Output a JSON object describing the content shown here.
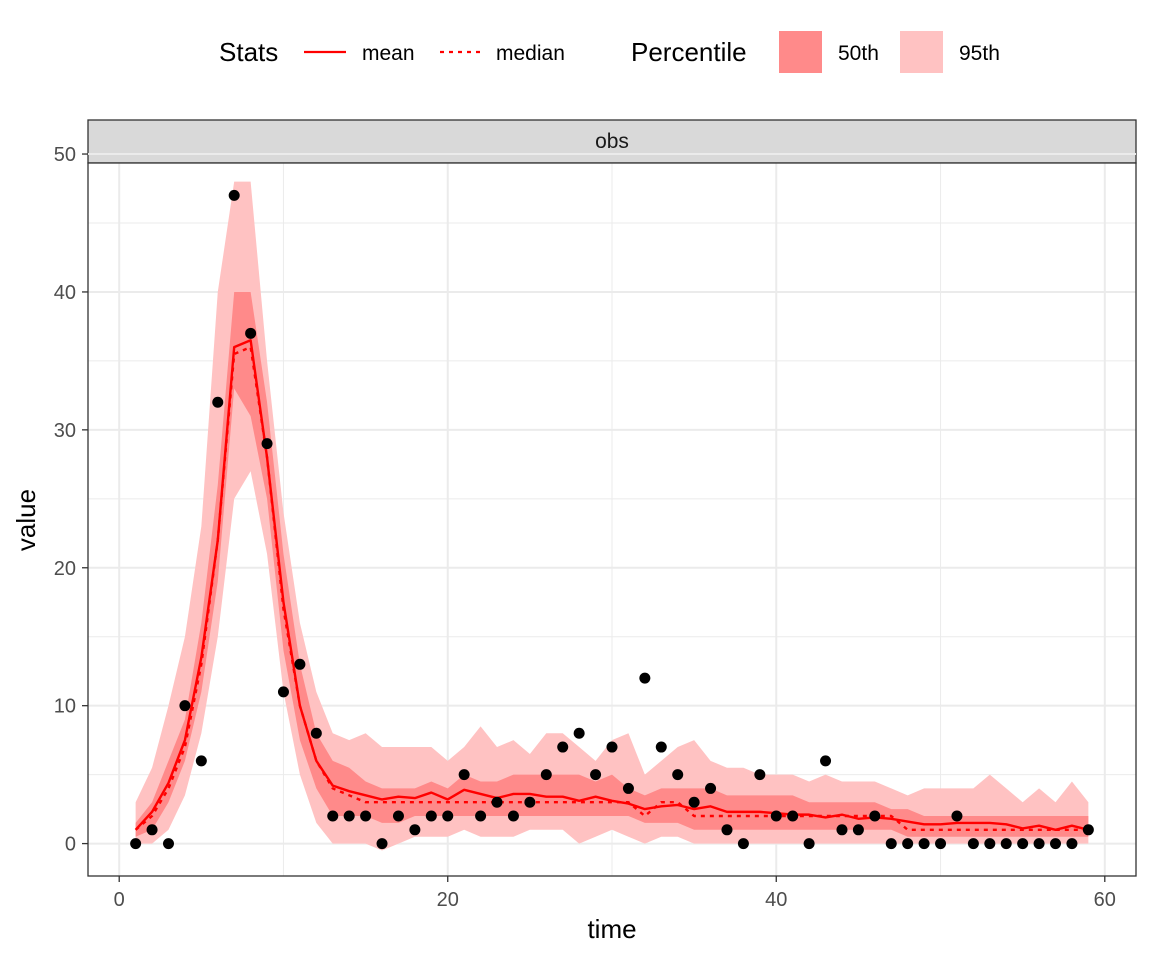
{
  "chart_data": {
    "type": "line",
    "facet_label": "obs",
    "xlabel": "time",
    "ylabel": "value",
    "xlim": [
      -1.9,
      61.9
    ],
    "ylim": [
      -2.35,
      49.35
    ],
    "x_ticks": [
      0,
      20,
      40,
      60
    ],
    "x_tick_labels": [
      "0",
      "20",
      "40",
      "60"
    ],
    "y_ticks": [
      0,
      10,
      20,
      30,
      40,
      50
    ],
    "y_tick_labels": [
      "0",
      "10",
      "20",
      "30",
      "40",
      "50"
    ],
    "grid": true,
    "legend_position": "top",
    "legend": {
      "stats_title": "Stats",
      "mean_label": "mean",
      "median_label": "median",
      "percentile_title": "Percentile",
      "p50_label": "50th",
      "p95_label": "95th"
    },
    "colors": {
      "line": "#ff0000",
      "band50": "#ff8a8a",
      "band95": "#ffc2c2",
      "points": "#000000",
      "strip": "#d9d9d9"
    },
    "x": [
      1,
      2,
      3,
      4,
      5,
      6,
      7,
      8,
      9,
      10,
      11,
      12,
      13,
      14,
      15,
      16,
      17,
      18,
      19,
      20,
      21,
      22,
      23,
      24,
      25,
      26,
      27,
      28,
      29,
      30,
      31,
      32,
      33,
      34,
      35,
      36,
      37,
      38,
      39,
      40,
      41,
      42,
      43,
      44,
      45,
      46,
      47,
      48,
      49,
      50,
      51,
      52,
      53,
      54,
      55,
      56,
      57,
      58,
      59
    ],
    "observed": [
      0,
      1,
      0,
      10,
      6,
      32,
      47,
      37,
      29,
      11,
      13,
      8,
      2,
      2,
      2,
      0,
      2,
      1,
      2,
      2,
      5,
      2,
      3,
      2,
      3,
      5,
      7,
      8,
      5,
      7,
      4,
      12,
      7,
      5,
      3,
      4,
      1,
      0,
      5,
      2,
      2,
      0,
      6,
      1,
      1,
      2,
      0,
      0,
      0,
      0,
      2,
      0,
      0,
      0,
      0,
      0,
      0,
      0,
      1
    ],
    "series": [
      {
        "name": "mean",
        "values": [
          1,
          2.3,
          4.4,
          7.5,
          13.5,
          22,
          36,
          36.5,
          28,
          17.5,
          10,
          6,
          4.2,
          3.8,
          3.5,
          3.2,
          3.4,
          3.3,
          3.7,
          3.2,
          3.9,
          3.6,
          3.3,
          3.6,
          3.6,
          3.4,
          3.4,
          3.1,
          3.4,
          3.1,
          2.9,
          2.5,
          2.7,
          2.8,
          2.5,
          2.7,
          2.3,
          2.3,
          2.3,
          2.2,
          2.1,
          2.1,
          1.9,
          2.1,
          1.8,
          1.9,
          1.8,
          1.6,
          1.4,
          1.4,
          1.5,
          1.5,
          1.5,
          1.4,
          1.1,
          1.3,
          1.0,
          1.3,
          1.0
        ]
      },
      {
        "name": "median",
        "values": [
          1,
          2,
          4,
          7,
          13,
          22,
          35.5,
          36,
          28,
          17,
          10,
          6,
          4,
          3.5,
          3,
          3,
          3,
          3,
          3,
          3,
          3,
          3,
          3,
          3,
          3,
          3,
          3,
          3,
          3,
          3,
          3,
          2,
          3,
          3,
          2,
          2,
          2,
          2,
          2,
          2,
          2,
          2,
          2,
          2,
          2,
          2,
          2,
          1,
          1,
          1,
          1,
          1,
          1,
          1,
          1,
          1,
          1,
          1,
          1
        ]
      }
    ],
    "band95_low": [
      0,
      0,
      1,
      3.5,
      8,
      15,
      25,
      27,
      21,
      11,
      5,
      1.5,
      0,
      0,
      0,
      -0.5,
      0,
      0.5,
      0.5,
      0.5,
      1,
      0.5,
      0.5,
      0.5,
      1,
      1,
      1,
      0,
      0.5,
      1,
      0.5,
      0,
      0.5,
      0.5,
      0,
      0,
      0,
      0,
      0,
      0,
      0,
      0,
      0,
      0,
      0,
      0,
      0,
      0,
      0,
      0,
      0,
      0,
      0,
      0,
      0,
      0,
      0,
      0,
      0
    ],
    "band95_high": [
      3,
      5.5,
      10,
      15,
      23,
      40,
      48,
      48,
      35,
      24,
      16,
      11,
      8,
      7.5,
      8,
      7,
      7,
      7,
      7,
      6,
      7,
      8.5,
      7,
      7.5,
      6.5,
      8,
      8,
      7,
      6,
      7.5,
      8,
      5,
      6,
      7,
      7.5,
      6,
      5.5,
      5.5,
      5,
      5,
      5,
      4.5,
      5,
      4.5,
      4.5,
      4.5,
      4,
      3.5,
      4,
      4,
      4,
      4,
      5,
      4,
      3,
      4,
      3,
      4.5,
      3
    ],
    "band50_low": [
      0.5,
      1,
      3,
      6,
      11,
      19,
      33,
      31,
      25,
      14,
      7.5,
      4,
      2,
      2,
      2,
      1.5,
      1.5,
      2,
      2,
      2,
      2,
      2,
      2,
      2,
      2,
      2,
      2,
      2,
      2,
      2,
      2,
      1.5,
      1.5,
      1.5,
      1,
      1,
      1,
      1,
      1,
      1,
      1,
      1,
      1,
      1,
      1,
      1,
      1,
      0.5,
      0.5,
      0.5,
      0.5,
      0.5,
      0.5,
      0.5,
      0.5,
      0.5,
      0.5,
      0.5,
      0.5
    ],
    "band50_high": [
      1.5,
      3,
      6,
      9,
      16,
      26,
      40,
      40,
      32,
      21,
      13,
      8,
      6,
      5.5,
      4.5,
      4,
      4,
      4,
      4.5,
      4,
      5,
      4.5,
      4.5,
      5,
      5,
      5,
      5,
      5,
      4.5,
      5,
      4,
      3.5,
      4,
      4,
      4,
      4,
      3.5,
      3.5,
      3.5,
      3.5,
      3.5,
      3,
      3,
      3,
      3,
      3,
      2.5,
      2.5,
      2,
      2,
      2,
      2,
      2,
      2,
      2,
      2,
      2,
      2,
      2
    ]
  }
}
